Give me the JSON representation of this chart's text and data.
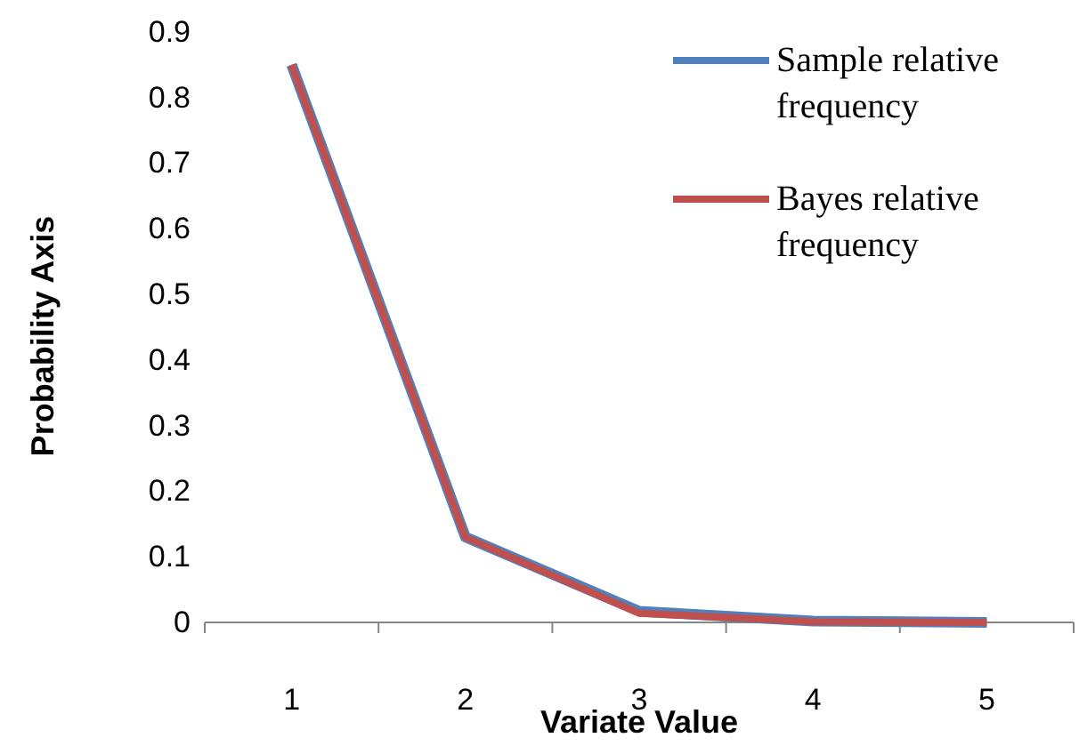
{
  "chart_data": {
    "type": "line",
    "categories": [
      "1",
      "2",
      "3",
      "4",
      "5"
    ],
    "series": [
      {
        "name": "Sample relative frequency",
        "color": "#4f81bd",
        "values": [
          0.85,
          0.13,
          0.017,
          0.002,
          0
        ]
      },
      {
        "name": "Bayes relative frequency",
        "color": "#c0504d",
        "values": [
          0.85,
          0.13,
          0.014,
          0.001,
          0
        ]
      }
    ],
    "xlabel": "Variate Value",
    "ylabel": "Probability Axis",
    "ylim": [
      0,
      0.9
    ],
    "yticks": [
      0,
      0.1,
      0.2,
      0.3,
      0.4,
      0.5,
      0.6,
      0.7,
      0.8,
      0.9
    ],
    "legend": "top right",
    "marker": "none",
    "line_style": "solid"
  }
}
